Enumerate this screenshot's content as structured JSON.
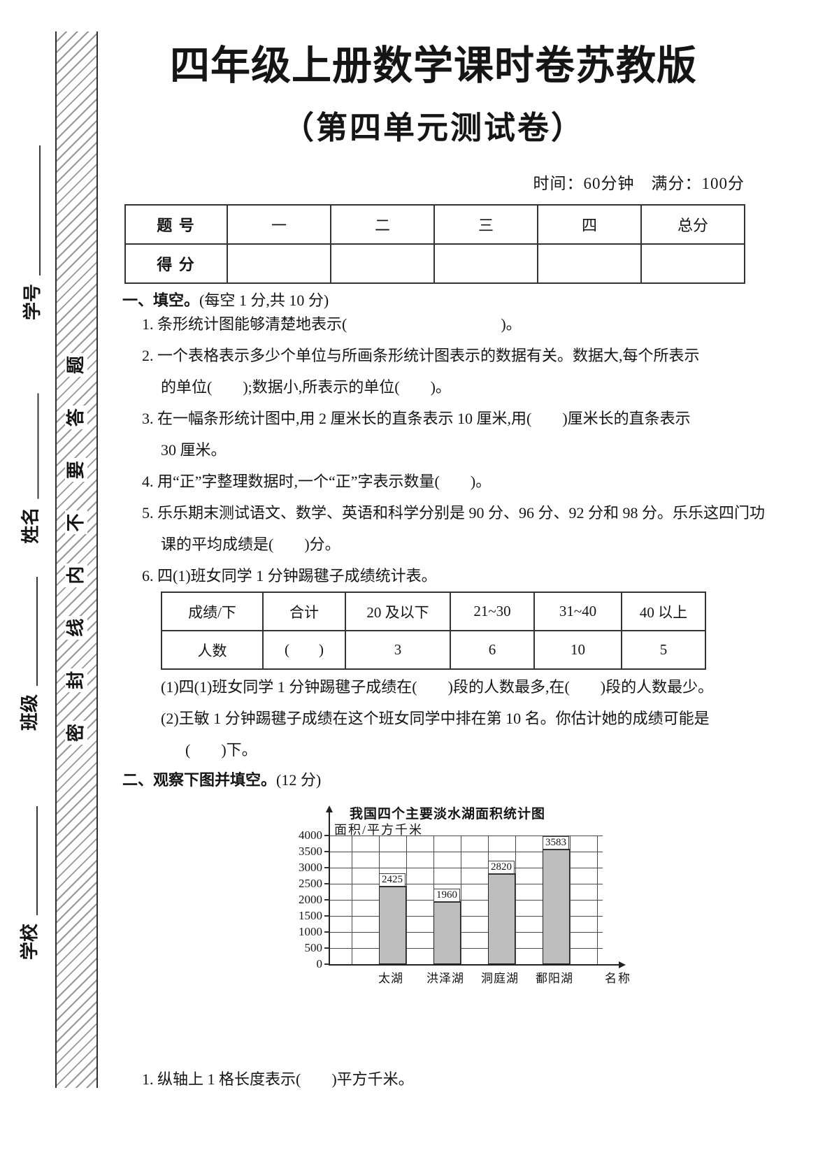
{
  "page": {
    "margin_labels": [
      "学号",
      "姓名",
      "班级",
      "学校"
    ],
    "seal_text": "密封线内不要答题",
    "title_line1": "四年级上册数学课时卷苏教版",
    "title_line2": "（第四单元测试卷）",
    "meta_line": "时间：60分钟　满分：100分"
  },
  "score_table": {
    "header": [
      "题 号",
      "一",
      "二",
      "三",
      "四",
      "总分"
    ],
    "row_label": "得 分",
    "row_values": [
      "",
      "",
      "",
      "",
      ""
    ]
  },
  "section1": {
    "heading_bold": "一、填空。",
    "heading_rest": "(每空 1 分,共 10 分)",
    "lines": [
      "1. 条形统计图能够清楚地表示(                                        )。",
      "2. 一个表格表示多少个单位与所画条形统计图表示的数据有关。数据大,每个所表示",
      "的单位(        );数据小,所表示的单位(        )。",
      "3. 在一幅条形统计图中,用 2 厘米长的直条表示 10 厘米,用(        )厘米长的直条表示",
      "30 厘米。",
      "4. 用“正”字整理数据时,一个“正”字表示数量(        )。",
      "5. 乐乐期末测试语文、数学、英语和科学分别是 90 分、96 分、92 分和 98 分。乐乐这四门功",
      "课的平均成绩是(        )分。",
      "6. 四(1)班女同学 1 分钟踢毽子成绩统计表。"
    ],
    "sub_lines": [
      "(1)四(1)班女同学 1 分钟踢毽子成绩在(        )段的人数最多,在(        )段的人数最少。",
      "(2)王敏 1 分钟踢毽子成绩在这个班女同学中排在第 10 名。你估计她的成绩可能是",
      "(        )下。"
    ]
  },
  "kick_table": {
    "header": [
      "成绩/下",
      "合计",
      "20 及以下",
      "21~30",
      "31~40",
      "40 以上"
    ],
    "row": [
      "人数",
      "(        )",
      "3",
      "6",
      "10",
      "5"
    ]
  },
  "section2": {
    "heading_bold": "二、观察下图并填空。",
    "heading_rest": "(12 分)",
    "question": "1. 纵轴上 1 格长度表示(        )平方千米。"
  },
  "chart_data": {
    "type": "bar",
    "title": "我国四个主要淡水湖面积统计图",
    "ylabel": "面积/平方千米",
    "xlabel": "名称",
    "categories": [
      "太湖",
      "洪泽湖",
      "洞庭湖",
      "鄱阳湖"
    ],
    "values": [
      2425,
      1960,
      2820,
      3583
    ],
    "ylim": [
      0,
      4000
    ],
    "ytick_step": 500,
    "grid": true,
    "bar_color": "#bdbdbd",
    "legend": "none"
  }
}
